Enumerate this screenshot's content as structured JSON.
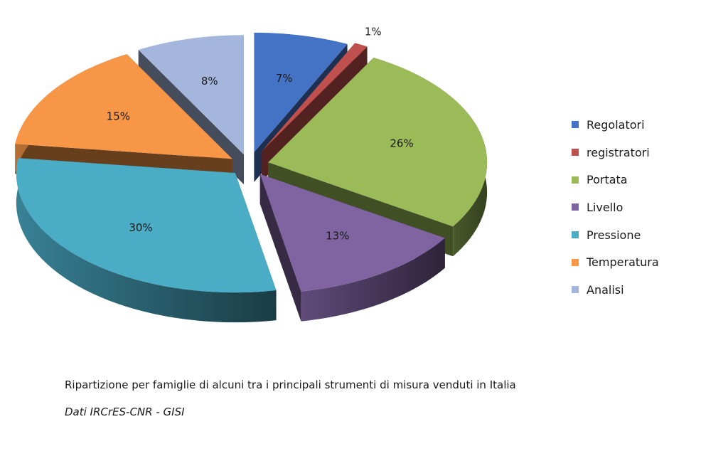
{
  "chart_data": {
    "type": "pie",
    "style": "3d-exploded",
    "categories": [
      "Regolatori",
      "registratori",
      "Portata",
      "Livello",
      "Pressione",
      "Temperatura",
      "Analisi"
    ],
    "values": [
      7,
      1,
      26,
      13,
      30,
      15,
      8
    ],
    "labels": [
      "7%",
      "1%",
      "26%",
      "13%",
      "30%",
      "15%",
      "8%"
    ],
    "colors": [
      "#4472C4",
      "#C0504D",
      "#9BBB59",
      "#8064A2",
      "#4BACC6",
      "#F79646",
      "#A5B6DC"
    ],
    "legend_position": "right"
  },
  "caption": "Ripartizione per famiglie di alcuni tra i principali strumenti di misura venduti in Italia",
  "source": "Dati IRCrES-CNR - GISI"
}
